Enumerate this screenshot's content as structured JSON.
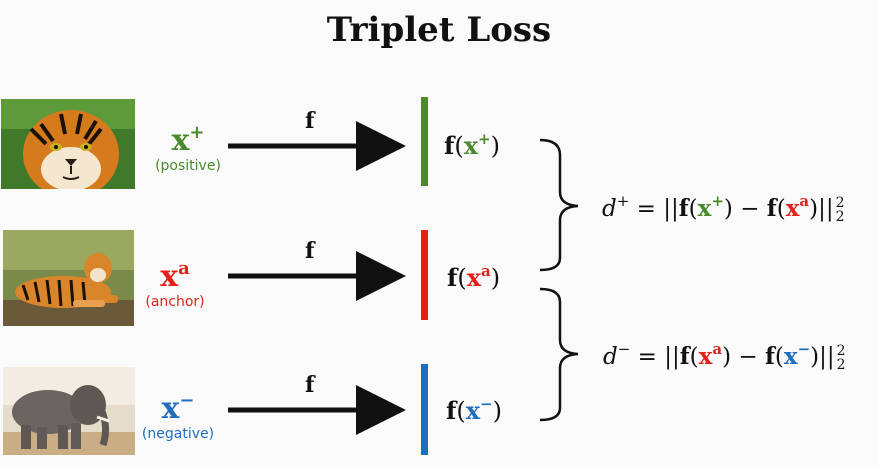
{
  "title": "Triplet Loss",
  "rows": [
    {
      "id": "positive",
      "symbol": "x",
      "superscript": "+",
      "caption": "(positive)",
      "arrow_label": "f",
      "fx_func": "f",
      "fx_arg": "x",
      "fx_sup": "+",
      "color": "#4a8a2c"
    },
    {
      "id": "anchor",
      "symbol": "x",
      "superscript": "a",
      "caption": "(anchor)",
      "arrow_label": "f",
      "fx_func": "f",
      "fx_arg": "x",
      "fx_sup": "a",
      "color": "#e2221a"
    },
    {
      "id": "negative",
      "symbol": "x",
      "superscript": "−",
      "caption": "(negative)",
      "arrow_label": "f",
      "fx_func": "f",
      "fx_arg": "x",
      "fx_sup": "−",
      "color": "#1f6dbf"
    }
  ],
  "formulas": {
    "d_plus": {
      "lhs": "d",
      "lhs_sup": "+",
      "eq": " = ",
      "open": "||",
      "f1": "f",
      "x1": "x",
      "x1_sup": "+",
      "minus": " − ",
      "f2": "f",
      "x2": "x",
      "x2_sup": "a",
      "close": "||",
      "exp": "2",
      "sub": "2"
    },
    "d_minus": {
      "lhs": "d",
      "lhs_sup": "−",
      "eq": " = ",
      "open": "||",
      "f1": "f",
      "x1": "x",
      "x1_sup": "a",
      "minus": " − ",
      "f2": "f",
      "x2": "x",
      "x2_sup": "−",
      "close": "||",
      "exp": "2",
      "sub": "2"
    }
  },
  "images": [
    {
      "subject": "tiger-face"
    },
    {
      "subject": "tiger-lying"
    },
    {
      "subject": "elephant"
    }
  ]
}
